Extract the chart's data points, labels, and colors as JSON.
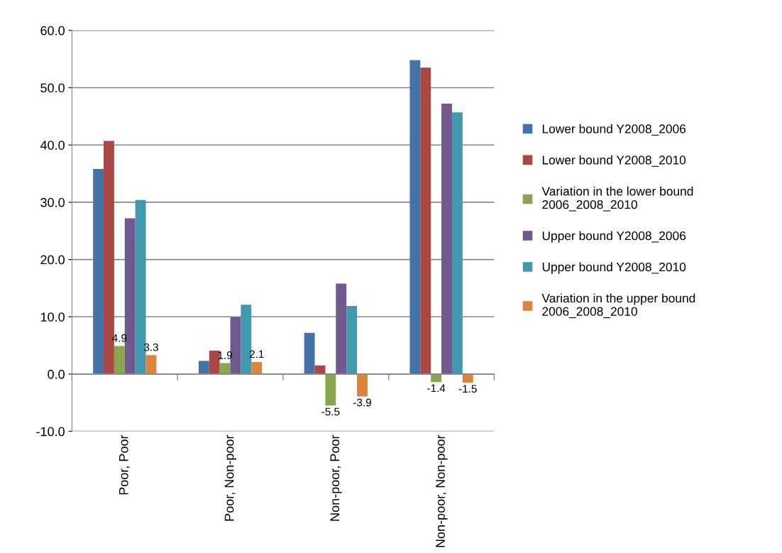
{
  "chart_data": {
    "type": "bar",
    "categories": [
      "Poor, Poor",
      "Poor, Non-poor",
      "Non-poor, Poor",
      "Non-poor, Non-poor"
    ],
    "series": [
      {
        "name": "Lower bound Y2008_2006",
        "color": "#4572a7",
        "values": [
          35.8,
          2.3,
          7.2,
          54.8
        ]
      },
      {
        "name": "Lower bound Y2008_2010",
        "color": "#aa4643",
        "values": [
          40.7,
          4.1,
          1.5,
          53.5
        ]
      },
      {
        "name": "Variation in the lower bound 2006_2008_2010",
        "color": "#89a54e",
        "values": [
          4.9,
          1.9,
          -5.5,
          -1.4
        ],
        "value_labels": [
          "4.9",
          "1.9",
          "-5.5",
          "-1.4"
        ]
      },
      {
        "name": "Upper bound Y2008_2006",
        "color": "#71588f",
        "values": [
          27.2,
          9.9,
          15.8,
          47.2
        ]
      },
      {
        "name": "Upper bound Y2008_2010",
        "color": "#4198af",
        "values": [
          30.4,
          12.1,
          11.9,
          45.7
        ]
      },
      {
        "name": "Variation in the upper bound 2006_2008_2010",
        "color": "#db843d",
        "values": [
          3.3,
          2.1,
          -3.9,
          -1.5
        ],
        "value_labels": [
          "3.3",
          "2.1",
          "-3.9",
          "-1.5"
        ]
      }
    ],
    "ylim": [
      -10,
      60
    ],
    "yticks": [
      {
        "value": -10,
        "label": "-10.0"
      },
      {
        "value": 0,
        "label": "0.0"
      },
      {
        "value": 10,
        "label": "10.0"
      },
      {
        "value": 20,
        "label": "20.0"
      },
      {
        "value": 30,
        "label": "30.0"
      },
      {
        "value": 40,
        "label": "40.0"
      },
      {
        "value": 50,
        "label": "50.0"
      },
      {
        "value": 60,
        "label": "60.0"
      }
    ],
    "grid": "y",
    "legend": "right"
  }
}
